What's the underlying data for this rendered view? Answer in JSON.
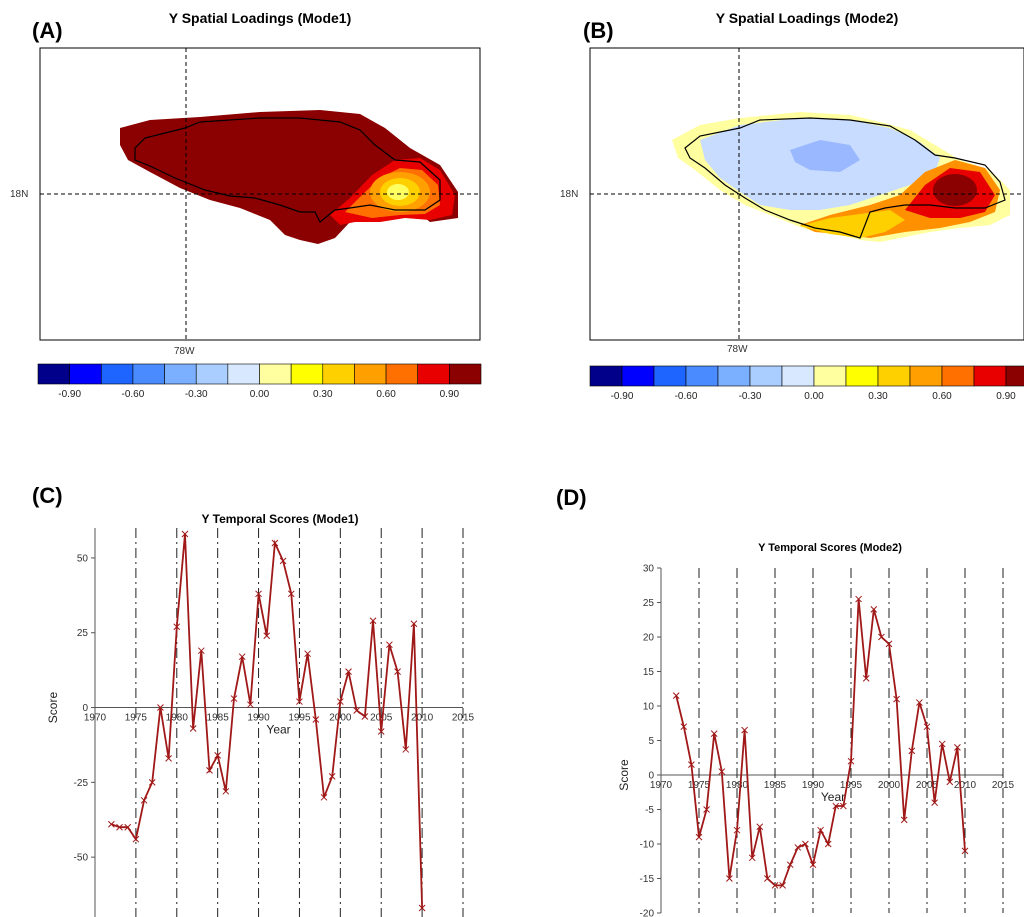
{
  "chart_data": [
    {
      "panel": "(A)",
      "type": "heatmap",
      "title": "Y Spatial Loadings (Mode1)",
      "lon_label": "78W",
      "lat_label": "18N",
      "colorbar": {
        "colors": [
          "#00008b",
          "#0000ff",
          "#1e64ff",
          "#4a8cff",
          "#7ab0ff",
          "#a9ceff",
          "#d8e8ff",
          "#ffffa0",
          "#ffff00",
          "#ffd000",
          "#ffa000",
          "#ff7000",
          "#e80000",
          "#8b0000"
        ],
        "tick_labels": [
          "-0.90",
          "-0.60",
          "-0.30",
          "0.00",
          "0.30",
          "0.60",
          "0.90"
        ]
      },
      "pattern": "uniformly high positive loadings (~0.9) over the whole island, lower (~0.3-0.6) in the eastern end"
    },
    {
      "panel": "(B)",
      "type": "heatmap",
      "title": "Y Spatial Loadings (Mode2)",
      "lon_label": "78W",
      "lat_label": "18N",
      "colorbar": {
        "colors": [
          "#00008b",
          "#0000ff",
          "#1e64ff",
          "#4a8cff",
          "#7ab0ff",
          "#a9ceff",
          "#d8e8ff",
          "#ffffa0",
          "#ffff00",
          "#ffd000",
          "#ffa000",
          "#ff7000",
          "#e80000",
          "#8b0000"
        ],
        "tick_labels": [
          "-0.90",
          "-0.60",
          "-0.30",
          "0.00",
          "0.30",
          "0.60",
          "0.90"
        ]
      },
      "pattern": "weak negative loadings (~-0.2) over most of the island, strong positive (~0.9) in the east"
    },
    {
      "panel": "(C)",
      "type": "line",
      "title": "Y Temporal Scores (Mode1)",
      "xlabel": "Year",
      "ylabel": "Score",
      "xlim": [
        1970,
        2015
      ],
      "ylim": [
        -70,
        60
      ],
      "x_ticks": [
        1970,
        1975,
        1980,
        1985,
        1990,
        1995,
        2000,
        2005,
        2010,
        2015
      ],
      "y_ticks": [
        -50,
        -25,
        0,
        25,
        50
      ],
      "color": "#a01818",
      "x": [
        1972,
        1973,
        1974,
        1975,
        1976,
        1977,
        1978,
        1979,
        1980,
        1981,
        1982,
        1983,
        1984,
        1985,
        1986,
        1987,
        1988,
        1989,
        1990,
        1991,
        1992,
        1993,
        1994,
        1995,
        1996,
        1997,
        1998,
        1999,
        2000,
        2001,
        2002,
        2003,
        2004,
        2005,
        2006,
        2007,
        2008,
        2009,
        2010
      ],
      "y": [
        -39,
        -40,
        -40,
        -44,
        -31,
        -25,
        0,
        -17,
        27,
        58,
        -7,
        19,
        -21,
        -16,
        -28,
        3,
        17,
        1,
        38,
        24,
        55,
        49,
        38,
        2,
        18,
        -4,
        -30,
        -23,
        2,
        12,
        -1,
        -3,
        29,
        -8,
        21,
        12,
        -14,
        28,
        -67
      ]
    },
    {
      "panel": "(D)",
      "type": "line",
      "title": "Y Temporal Scores (Mode2)",
      "xlabel": "Year",
      "ylabel": "Score",
      "xlim": [
        1970,
        2015
      ],
      "ylim": [
        -20,
        30
      ],
      "x_ticks": [
        1970,
        1975,
        1980,
        1985,
        1990,
        1995,
        2000,
        2005,
        2010,
        2015
      ],
      "y_ticks": [
        -20,
        -15,
        -10,
        -5,
        0,
        5,
        10,
        15,
        20,
        25,
        30
      ],
      "color": "#a01818",
      "x": [
        1972,
        1973,
        1974,
        1975,
        1976,
        1977,
        1978,
        1979,
        1980,
        1981,
        1982,
        1983,
        1984,
        1985,
        1986,
        1987,
        1988,
        1989,
        1990,
        1991,
        1992,
        1993,
        1994,
        1995,
        1996,
        1997,
        1998,
        1999,
        2000,
        2001,
        2002,
        2003,
        2004,
        2005,
        2006,
        2007,
        2008,
        2009,
        2010
      ],
      "y": [
        11.5,
        7,
        1.5,
        -9,
        -5,
        6,
        0.5,
        -15,
        -8,
        6.5,
        -12,
        -7.5,
        -15,
        -16,
        -16,
        -13,
        -10.5,
        -10,
        -13,
        -8,
        -10,
        -4.5,
        -4.5,
        2,
        25.5,
        14,
        24,
        20,
        19,
        11,
        -6.5,
        3.5,
        10.5,
        7,
        -4,
        4.5,
        -1,
        4,
        -11
      ]
    }
  ]
}
